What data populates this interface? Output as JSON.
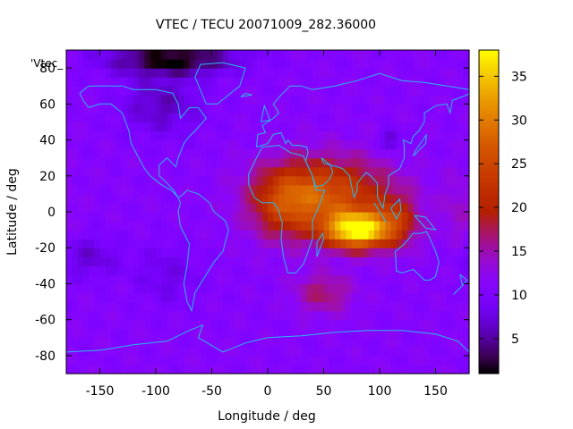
{
  "chart_data": {
    "type": "heatmap",
    "title": "VTEC / TECU 20071009_282.36000",
    "xlabel": "Longitude / deg",
    "ylabel": "Latitude / deg",
    "legend_label": "'Vtec_",
    "xlim": [
      -180,
      180
    ],
    "ylim": [
      -90,
      90
    ],
    "x_ticks": [
      -150,
      -100,
      -50,
      0,
      50,
      100,
      150
    ],
    "y_ticks": [
      -80,
      -60,
      -40,
      -20,
      0,
      20,
      40,
      60,
      80
    ],
    "colorbar": {
      "range": [
        1,
        38
      ],
      "ticks": [
        5,
        10,
        15,
        20,
        25,
        30,
        35
      ]
    },
    "grid_step_deg": [
      5,
      5
    ],
    "baseline_tecu": 11,
    "anomalies": [
      {
        "lon": 80,
        "lat": -10,
        "peak_tecu": 26,
        "sigma_lon": 20,
        "sigma_lat": 7
      },
      {
        "lon": 55,
        "lat": 10,
        "peak_tecu": 14,
        "sigma_lon": 38,
        "sigma_lat": 14
      },
      {
        "lon": 15,
        "lat": 5,
        "peak_tecu": 9,
        "sigma_lon": 22,
        "sigma_lat": 14
      },
      {
        "lon": 115,
        "lat": -5,
        "peak_tecu": 8,
        "sigma_lon": 15,
        "sigma_lat": 10
      },
      {
        "lon": 50,
        "lat": -45,
        "peak_tecu": 6,
        "sigma_lon": 18,
        "sigma_lat": 8
      },
      {
        "lon": -85,
        "lat": 85,
        "peak_tecu": -10,
        "sigma_lon": 40,
        "sigma_lat": 6
      },
      {
        "lon": -95,
        "lat": 60,
        "peak_tecu": -5,
        "sigma_lon": 25,
        "sigma_lat": 12
      },
      {
        "lon": 110,
        "lat": 40,
        "peak_tecu": -6,
        "sigma_lon": 6,
        "sigma_lat": 4
      },
      {
        "lon": -160,
        "lat": -25,
        "peak_tecu": -4,
        "sigma_lon": 20,
        "sigma_lat": 8
      },
      {
        "lon": -90,
        "lat": -35,
        "peak_tecu": -3,
        "sigma_lon": 20,
        "sigma_lat": 12
      },
      {
        "lon": 170,
        "lat": 0,
        "peak_tecu": 3,
        "sigma_lon": 10,
        "sigma_lat": 15
      }
    ],
    "coastlines": [
      [
        [
          -168,
          66
        ],
        [
          -160,
          70
        ],
        [
          -145,
          70
        ],
        [
          -130,
          70
        ],
        [
          -120,
          68
        ],
        [
          -100,
          68
        ],
        [
          -85,
          66
        ],
        [
          -80,
          60
        ],
        [
          -78,
          52
        ],
        [
          -70,
          58
        ],
        [
          -62,
          58
        ],
        [
          -55,
          52
        ],
        [
          -65,
          45
        ],
        [
          -70,
          42
        ],
        [
          -75,
          38
        ],
        [
          -80,
          30
        ],
        [
          -82,
          25
        ],
        [
          -90,
          30
        ],
        [
          -97,
          26
        ],
        [
          -97,
          20
        ],
        [
          -90,
          16
        ],
        [
          -84,
          12
        ],
        [
          -80,
          8
        ],
        [
          -77,
          9
        ],
        [
          -72,
          12
        ],
        [
          -62,
          10
        ],
        [
          -52,
          5
        ],
        [
          -48,
          0
        ],
        [
          -38,
          -5
        ],
        [
          -35,
          -10
        ],
        [
          -40,
          -22
        ],
        [
          -48,
          -28
        ],
        [
          -58,
          -38
        ],
        [
          -65,
          -45
        ],
        [
          -68,
          -55
        ],
        [
          -72,
          -50
        ],
        [
          -75,
          -40
        ],
        [
          -72,
          -30
        ],
        [
          -70,
          -18
        ],
        [
          -78,
          -8
        ],
        [
          -80,
          0
        ],
        [
          -78,
          5
        ],
        [
          -80,
          8
        ],
        [
          -86,
          12
        ],
        [
          -95,
          15
        ],
        [
          -105,
          20
        ],
        [
          -110,
          24
        ],
        [
          -117,
          32
        ],
        [
          -122,
          38
        ],
        [
          -124,
          45
        ],
        [
          -130,
          55
        ],
        [
          -140,
          60
        ],
        [
          -150,
          60
        ],
        [
          -160,
          58
        ],
        [
          -165,
          62
        ],
        [
          -168,
          66
        ]
      ],
      [
        [
          -55,
          60
        ],
        [
          -45,
          60
        ],
        [
          -25,
          70
        ],
        [
          -20,
          80
        ],
        [
          -40,
          83
        ],
        [
          -60,
          82
        ],
        [
          -65,
          75
        ],
        [
          -55,
          60
        ]
      ],
      [
        [
          -17,
          15
        ],
        [
          -17,
          21
        ],
        [
          -10,
          30
        ],
        [
          -5,
          36
        ],
        [
          10,
          37
        ],
        [
          20,
          33
        ],
        [
          32,
          31
        ],
        [
          34,
          28
        ],
        [
          40,
          20
        ],
        [
          43,
          12
        ],
        [
          51,
          12
        ],
        [
          45,
          2
        ],
        [
          40,
          -5
        ],
        [
          40,
          -15
        ],
        [
          35,
          -24
        ],
        [
          32,
          -29
        ],
        [
          25,
          -34
        ],
        [
          18,
          -34
        ],
        [
          14,
          -25
        ],
        [
          12,
          -15
        ],
        [
          13,
          -6
        ],
        [
          9,
          2
        ],
        [
          5,
          5
        ],
        [
          -5,
          5
        ],
        [
          -12,
          8
        ],
        [
          -17,
          15
        ]
      ],
      [
        [
          44,
          -25
        ],
        [
          50,
          -15
        ],
        [
          49,
          -12
        ],
        [
          44,
          -17
        ],
        [
          44,
          -25
        ]
      ],
      [
        [
          -10,
          36
        ],
        [
          -9,
          43
        ],
        [
          -2,
          44
        ],
        [
          -5,
          48
        ],
        [
          5,
          52
        ],
        [
          10,
          55
        ],
        [
          5,
          60
        ],
        [
          12,
          65
        ],
        [
          20,
          70
        ],
        [
          30,
          70
        ],
        [
          40,
          68
        ],
        [
          60,
          70
        ],
        [
          80,
          73
        ],
        [
          100,
          77
        ],
        [
          120,
          73
        ],
        [
          140,
          72
        ],
        [
          160,
          70
        ],
        [
          180,
          68
        ]
      ],
      [
        [
          -10,
          36
        ],
        [
          0,
          38
        ],
        [
          5,
          43
        ],
        [
          12,
          44
        ],
        [
          16,
          38
        ],
        [
          18,
          40
        ],
        [
          22,
          37
        ],
        [
          28,
          37
        ],
        [
          35,
          36
        ],
        [
          36,
          33
        ],
        [
          34,
          28
        ],
        [
          40,
          20
        ],
        [
          43,
          14
        ],
        [
          50,
          15
        ],
        [
          55,
          18
        ],
        [
          58,
          22
        ],
        [
          56,
          26
        ],
        [
          50,
          27
        ],
        [
          48,
          30
        ],
        [
          56,
          26
        ],
        [
          62,
          25
        ],
        [
          67,
          24
        ],
        [
          73,
          20
        ],
        [
          77,
          8
        ],
        [
          80,
          12
        ],
        [
          80,
          16
        ],
        [
          88,
          22
        ],
        [
          92,
          20
        ],
        [
          98,
          16
        ],
        [
          98,
          8
        ],
        [
          103,
          2
        ],
        [
          105,
          10
        ],
        [
          108,
          15
        ],
        [
          108,
          20
        ],
        [
          118,
          24
        ],
        [
          122,
          30
        ],
        [
          122,
          37
        ],
        [
          121,
          40
        ],
        [
          128,
          38
        ],
        [
          130,
          42
        ],
        [
          135,
          45
        ],
        [
          140,
          50
        ],
        [
          140,
          55
        ],
        [
          150,
          59
        ],
        [
          160,
          60
        ],
        [
          163,
          55
        ],
        [
          165,
          62
        ],
        [
          178,
          65
        ],
        [
          180,
          66
        ]
      ],
      [
        [
          114,
          -22
        ],
        [
          122,
          -18
        ],
        [
          130,
          -12
        ],
        [
          137,
          -12
        ],
        [
          142,
          -11
        ],
        [
          145,
          -15
        ],
        [
          150,
          -22
        ],
        [
          153,
          -28
        ],
        [
          150,
          -36
        ],
        [
          145,
          -38
        ],
        [
          140,
          -38
        ],
        [
          135,
          -35
        ],
        [
          130,
          -32
        ],
        [
          120,
          -34
        ],
        [
          115,
          -33
        ],
        [
          114,
          -22
        ]
      ],
      [
        [
          95,
          5
        ],
        [
          104,
          -4
        ],
        [
          106,
          -6
        ],
        [
          100,
          0
        ],
        [
          95,
          5
        ]
      ],
      [
        [
          110,
          2
        ],
        [
          118,
          7
        ],
        [
          119,
          1
        ],
        [
          115,
          -4
        ],
        [
          110,
          2
        ]
      ],
      [
        [
          131,
          -2
        ],
        [
          141,
          -3
        ],
        [
          150,
          -10
        ],
        [
          141,
          -9
        ],
        [
          131,
          -2
        ]
      ],
      [
        [
          166,
          -46
        ],
        [
          174,
          -41
        ],
        [
          178,
          -38
        ],
        [
          172,
          -35
        ],
        [
          174,
          -41
        ],
        [
          166,
          -46
        ]
      ],
      [
        [
          -6,
          50
        ],
        [
          2,
          51
        ],
        [
          -3,
          59
        ],
        [
          -6,
          50
        ]
      ],
      [
        [
          -24,
          64
        ],
        [
          -14,
          65
        ],
        [
          -20,
          66
        ],
        [
          -24,
          64
        ]
      ],
      [
        [
          130,
          31
        ],
        [
          141,
          38
        ],
        [
          142,
          43
        ],
        [
          132,
          34
        ],
        [
          130,
          31
        ]
      ],
      [
        [
          -180,
          -78
        ],
        [
          -150,
          -77
        ],
        [
          -120,
          -74
        ],
        [
          -90,
          -72
        ],
        [
          -70,
          -66
        ],
        [
          -58,
          -63
        ],
        [
          -62,
          -70
        ],
        [
          -40,
          -78
        ],
        [
          -20,
          -73
        ],
        [
          0,
          -70
        ],
        [
          30,
          -69
        ],
        [
          60,
          -67
        ],
        [
          90,
          -66
        ],
        [
          120,
          -66
        ],
        [
          150,
          -68
        ],
        [
          170,
          -72
        ],
        [
          180,
          -78
        ]
      ]
    ]
  }
}
